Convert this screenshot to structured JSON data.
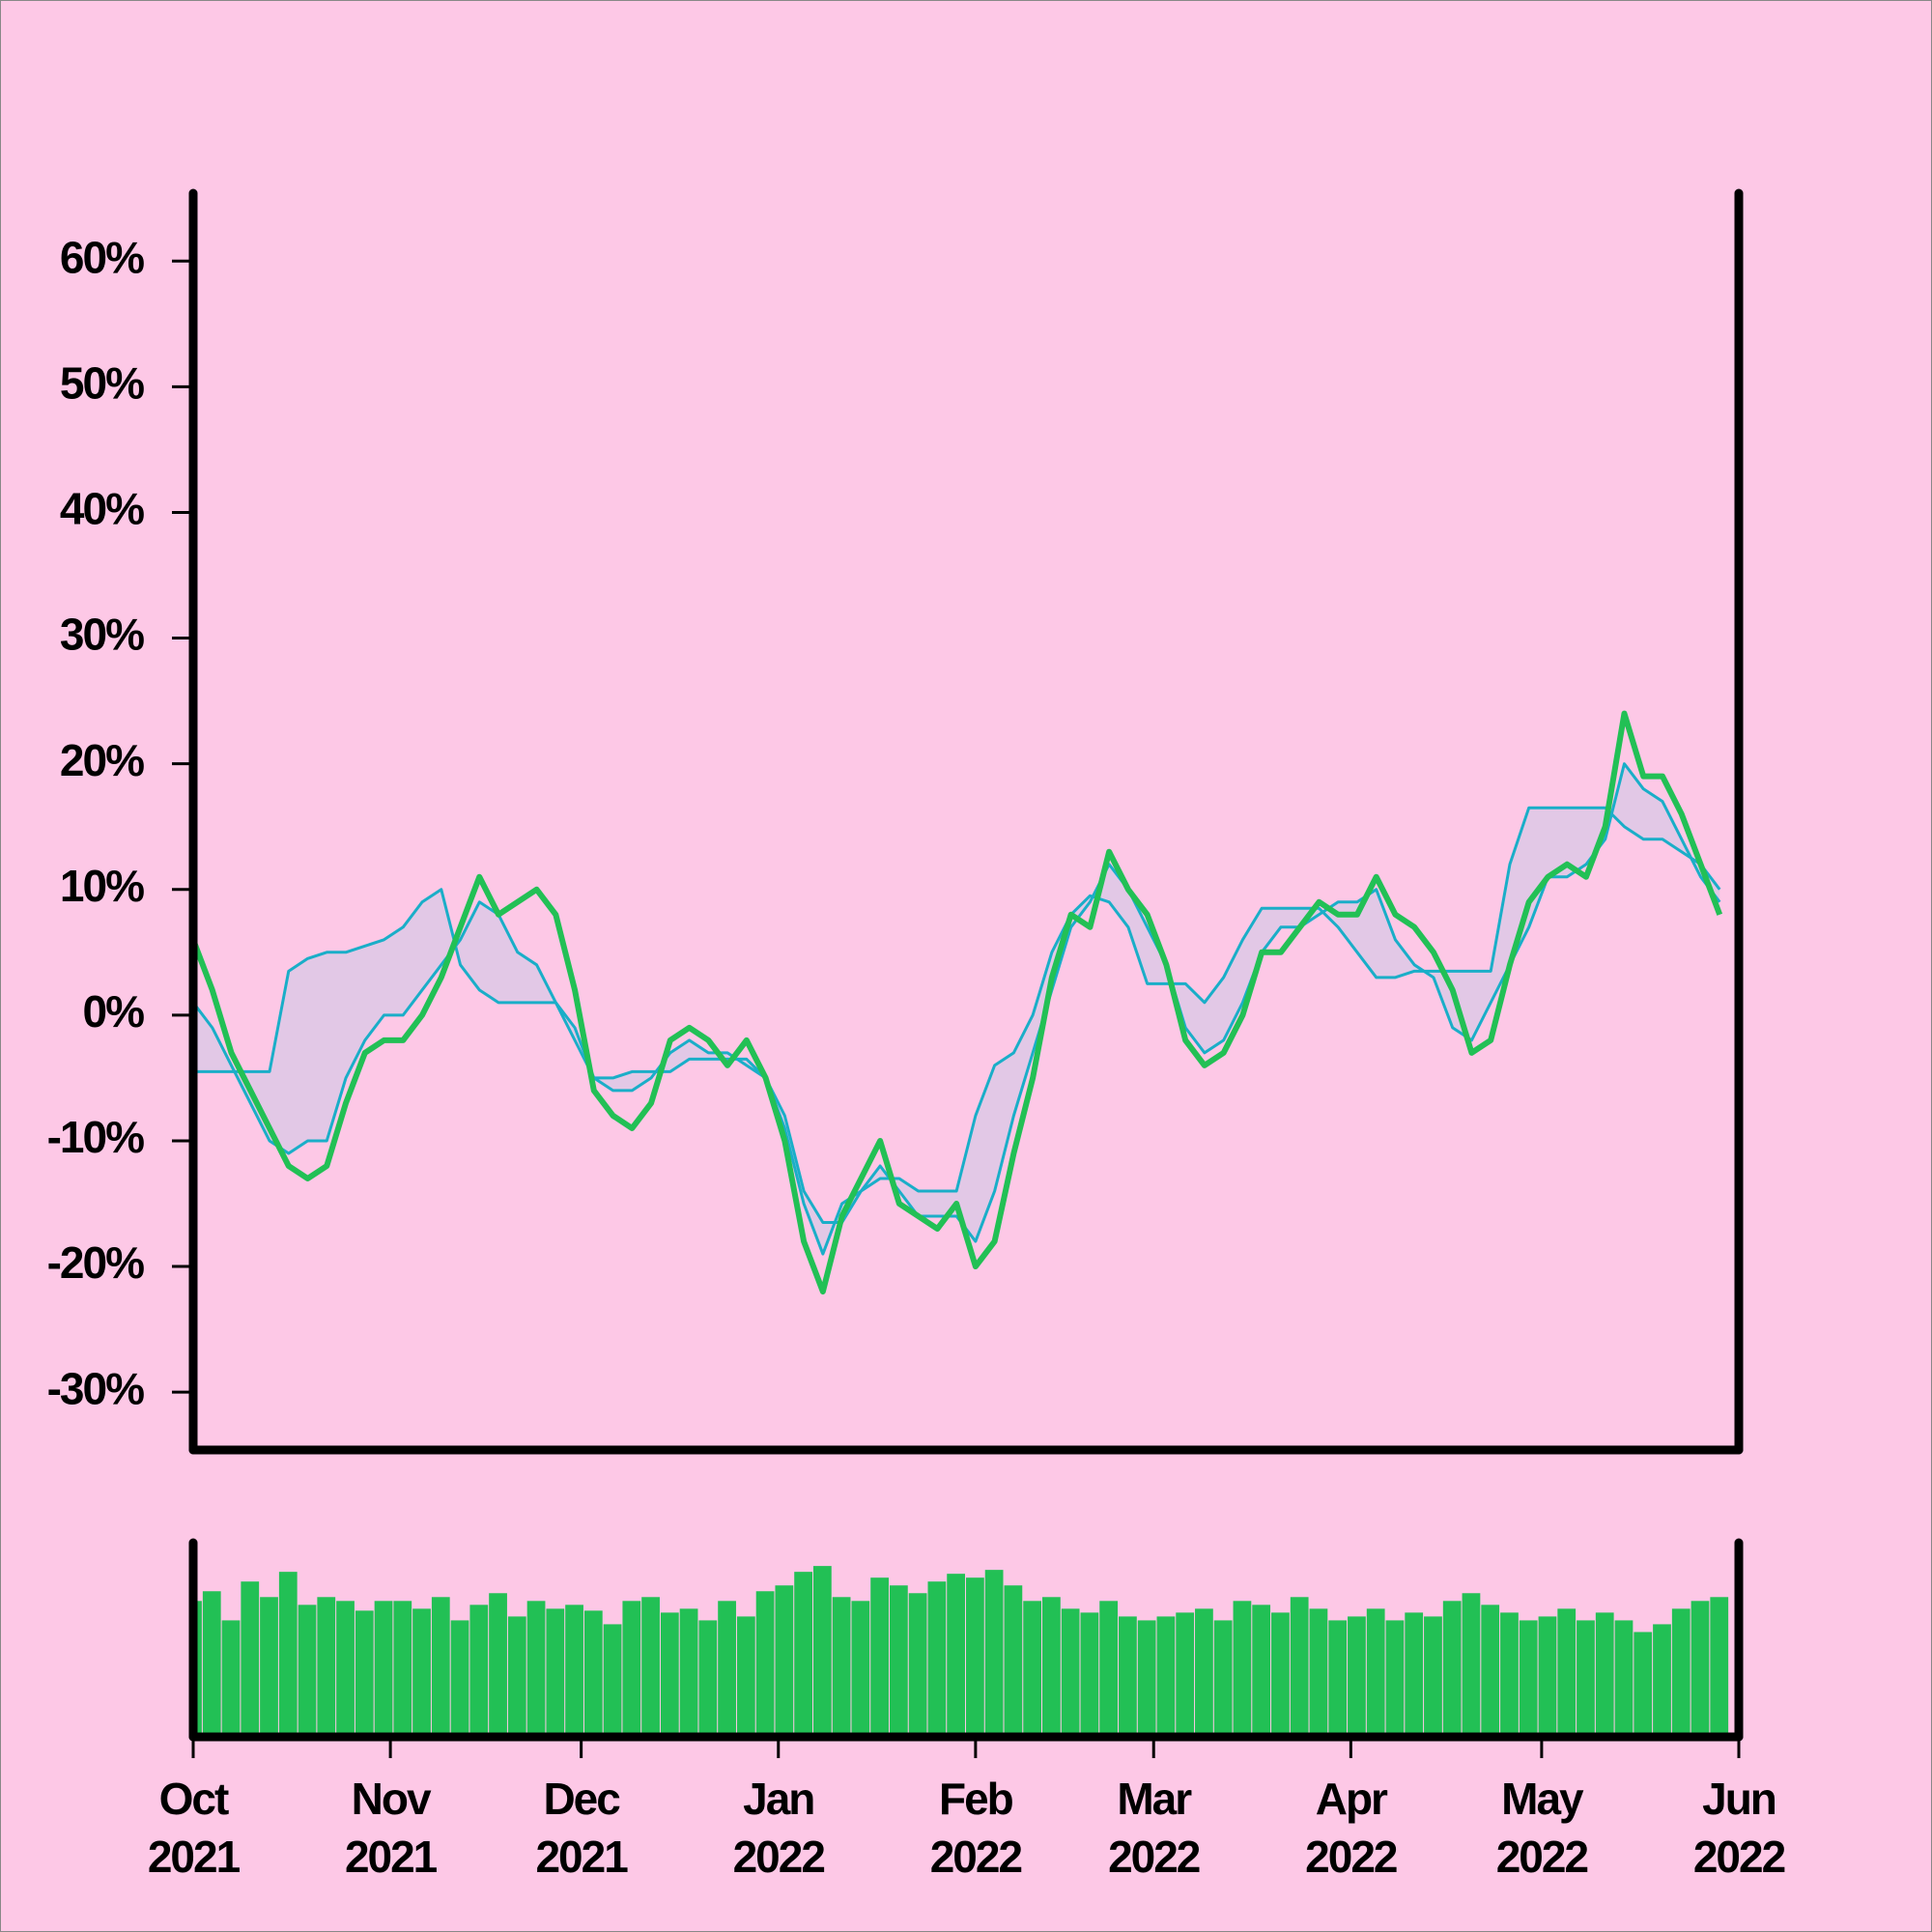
{
  "chart_data": {
    "type": "line",
    "x": [
      "2021-10-01",
      "2021-10-04",
      "2021-10-07",
      "2021-10-10",
      "2021-10-13",
      "2021-10-16",
      "2021-10-19",
      "2021-10-22",
      "2021-10-25",
      "2021-10-28",
      "2021-10-31",
      "2021-11-03",
      "2021-11-06",
      "2021-11-09",
      "2021-11-12",
      "2021-11-15",
      "2021-11-18",
      "2021-11-21",
      "2021-11-24",
      "2021-11-27",
      "2021-11-30",
      "2021-12-03",
      "2021-12-06",
      "2021-12-09",
      "2021-12-12",
      "2021-12-15",
      "2021-12-18",
      "2021-12-21",
      "2021-12-24",
      "2021-12-27",
      "2021-12-30",
      "2022-01-02",
      "2022-01-05",
      "2022-01-08",
      "2022-01-11",
      "2022-01-14",
      "2022-01-17",
      "2022-01-20",
      "2022-01-23",
      "2022-01-26",
      "2022-01-29",
      "2022-02-01",
      "2022-02-04",
      "2022-02-07",
      "2022-02-10",
      "2022-02-13",
      "2022-02-16",
      "2022-02-19",
      "2022-02-22",
      "2022-02-25",
      "2022-02-28",
      "2022-03-03",
      "2022-03-06",
      "2022-03-09",
      "2022-03-12",
      "2022-03-15",
      "2022-03-18",
      "2022-03-21",
      "2022-03-24",
      "2022-03-27",
      "2022-03-30",
      "2022-04-02",
      "2022-04-05",
      "2022-04-08",
      "2022-04-11",
      "2022-04-14",
      "2022-04-17",
      "2022-04-20",
      "2022-04-23",
      "2022-04-26",
      "2022-04-29",
      "2022-05-02",
      "2022-05-05",
      "2022-05-08",
      "2022-05-11",
      "2022-05-14",
      "2022-05-17",
      "2022-05-20",
      "2022-05-23",
      "2022-05-26",
      "2022-05-29"
    ],
    "series": [
      {
        "color": "#22c055",
        "values": [
          6,
          2,
          -3,
          -6,
          -9,
          -12,
          -13,
          -12,
          -7,
          -3,
          -2,
          -2,
          0,
          3,
          7,
          11,
          8,
          9,
          10,
          8,
          2,
          -6,
          -8,
          -9,
          -7,
          -2,
          -1,
          -2,
          -4,
          -2,
          -5,
          -10,
          -18,
          -22,
          -16,
          -13,
          -10,
          -15,
          -16,
          -17,
          -15,
          -20,
          -18,
          -11,
          -5,
          3,
          8,
          7,
          13,
          10,
          8,
          4,
          -2,
          -4,
          -3,
          0,
          5,
          5,
          7,
          9,
          8,
          8,
          11,
          8,
          7,
          5,
          2,
          -3,
          -2,
          4,
          9,
          11,
          12,
          11,
          15,
          24,
          19,
          19,
          16,
          12,
          8
        ]
      },
      {
        "color": "#1aaec8",
        "values": [
          1,
          -1,
          -4,
          -7,
          -10,
          -11,
          -10,
          -10,
          -5,
          -2,
          0,
          0,
          2,
          4,
          6,
          9,
          8,
          5,
          4,
          1,
          -2,
          -5,
          -6,
          -6,
          -5,
          -3,
          -2,
          -3,
          -3,
          -4,
          -5,
          -9,
          -15,
          -19,
          -15,
          -14,
          -12,
          -14,
          -16,
          -16,
          -16,
          -18,
          -14,
          -8,
          -3,
          2,
          7,
          9,
          12,
          10,
          7,
          4,
          -1,
          -3,
          -2,
          1,
          5,
          7,
          7,
          8,
          9,
          9,
          10,
          6,
          4,
          3,
          -1,
          -2,
          1,
          4,
          7,
          11,
          11,
          12,
          14,
          20,
          18,
          17,
          14,
          11,
          9
        ]
      },
      {
        "color": "#1aaec8",
        "values": [
          -4.5,
          -4.5,
          -4.5,
          -4.5,
          -4.5,
          3.5,
          4.5,
          5,
          5,
          5.5,
          6,
          7,
          9,
          10,
          4,
          2,
          1,
          1,
          1,
          1,
          -1,
          -5,
          -5,
          -4.5,
          -4.5,
          -4.5,
          -3.5,
          -3.5,
          -3.5,
          -3.5,
          -5,
          -8,
          -14,
          -16.5,
          -16.5,
          -14,
          -13,
          -13,
          -14,
          -14,
          -14,
          -8,
          -4,
          -3,
          0,
          5,
          8,
          9.5,
          9,
          7,
          2.5,
          2.5,
          2.5,
          1,
          3,
          6,
          8.5,
          8.5,
          8.5,
          8.5,
          7,
          5,
          3,
          3,
          3.5,
          3.5,
          3.5,
          3.5,
          3.5,
          12,
          16.5,
          16.5,
          16.5,
          16.5,
          16.5,
          15,
          14,
          14,
          13,
          12,
          10
        ]
      }
    ],
    "band_color": "#e2c8e6",
    "xlim": [
      "2021-10-01",
      "2022-06-01"
    ],
    "xticks": [
      {
        "value": "2021-10-01",
        "label": [
          "Oct",
          "2021"
        ]
      },
      {
        "value": "2021-11-01",
        "label": [
          "Nov",
          "2021"
        ]
      },
      {
        "value": "2021-12-01",
        "label": [
          "Dec",
          "2021"
        ]
      },
      {
        "value": "2022-01-01",
        "label": [
          "Jan",
          "2022"
        ]
      },
      {
        "value": "2022-02-01",
        "label": [
          "Feb",
          "2022"
        ]
      },
      {
        "value": "2022-03-01",
        "label": [
          "Mar",
          "2022"
        ]
      },
      {
        "value": "2022-04-01",
        "label": [
          "Apr",
          "2022"
        ]
      },
      {
        "value": "2022-05-01",
        "label": [
          "May",
          "2022"
        ]
      },
      {
        "value": "2022-06-01",
        "label": [
          "Jun",
          "2022"
        ]
      }
    ],
    "ylim": [
      -34.6,
      65.4
    ],
    "yticks": [
      {
        "value": -30,
        "label": "-30%"
      },
      {
        "value": -20,
        "label": "-20%"
      },
      {
        "value": -10,
        "label": "-10%"
      },
      {
        "value": 0,
        "label": "0%"
      },
      {
        "value": 10,
        "label": "10%"
      },
      {
        "value": 20,
        "label": "20%"
      },
      {
        "value": 30,
        "label": "30%"
      },
      {
        "value": 40,
        "label": "40%"
      },
      {
        "value": 50,
        "label": "50%"
      },
      {
        "value": 60,
        "label": "60%"
      }
    ],
    "volume": {
      "type": "bar",
      "color": "#22c055",
      "ylim": [
        0,
        100
      ],
      "values": [
        70,
        75,
        60,
        80,
        72,
        85,
        68,
        72,
        70,
        65,
        70,
        70,
        66,
        72,
        60,
        68,
        74,
        62,
        70,
        66,
        68,
        65,
        58,
        70,
        72,
        64,
        66,
        60,
        70,
        62,
        75,
        78,
        85,
        88,
        72,
        70,
        82,
        78,
        74,
        80,
        84,
        82,
        86,
        78,
        70,
        72,
        66,
        64,
        70,
        62,
        60,
        62,
        64,
        66,
        60,
        70,
        68,
        64,
        72,
        66,
        60,
        62,
        66,
        60,
        64,
        62,
        70,
        74,
        68,
        64,
        60,
        62,
        66,
        60,
        64,
        60,
        54,
        58,
        66,
        70,
        72
      ]
    }
  }
}
